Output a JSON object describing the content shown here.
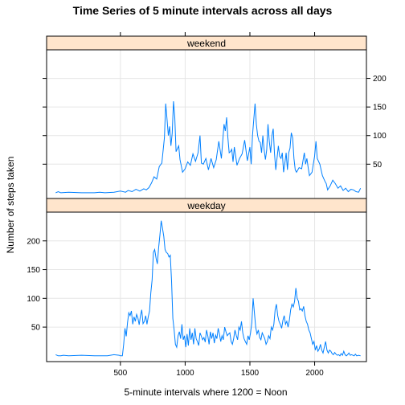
{
  "chart_data": {
    "type": "line",
    "title": "Time Series of 5 minute intervals across all days",
    "xlabel": "5-minute intervals where 1200 = Noon",
    "ylabel": "Number of steps taken",
    "xlim": [
      -70,
      2400
    ],
    "ylim": [
      -10,
      250
    ],
    "x_ticks": [
      500,
      1000,
      1500,
      2000
    ],
    "y_ticks": [
      50,
      100,
      150,
      200
    ],
    "grid": true,
    "line_color": "#0080FF",
    "strip_color": "#FFE5CC",
    "panels": [
      {
        "name": "weekend",
        "y_axis_side": "right",
        "points": [
          [
            0,
            0
          ],
          [
            20,
            2
          ],
          [
            40,
            0
          ],
          [
            100,
            1
          ],
          [
            200,
            0
          ],
          [
            300,
            0
          ],
          [
            340,
            1
          ],
          [
            380,
            0
          ],
          [
            450,
            1
          ],
          [
            500,
            3
          ],
          [
            540,
            1
          ],
          [
            560,
            4
          ],
          [
            590,
            2
          ],
          [
            620,
            6
          ],
          [
            650,
            3
          ],
          [
            680,
            7
          ],
          [
            700,
            5
          ],
          [
            720,
            9
          ],
          [
            740,
            17
          ],
          [
            760,
            28
          ],
          [
            780,
            24
          ],
          [
            800,
            46
          ],
          [
            820,
            52
          ],
          [
            840,
            96
          ],
          [
            850,
            156
          ],
          [
            860,
            128
          ],
          [
            870,
            100
          ],
          [
            880,
            116
          ],
          [
            890,
            82
          ],
          [
            900,
            104
          ],
          [
            910,
            160
          ],
          [
            920,
            132
          ],
          [
            930,
            72
          ],
          [
            950,
            82
          ],
          [
            960,
            58
          ],
          [
            980,
            36
          ],
          [
            1000,
            42
          ],
          [
            1020,
            54
          ],
          [
            1040,
            48
          ],
          [
            1060,
            68
          ],
          [
            1080,
            55
          ],
          [
            1100,
            70
          ],
          [
            1115,
            100
          ],
          [
            1125,
            52
          ],
          [
            1140,
            50
          ],
          [
            1160,
            60
          ],
          [
            1180,
            40
          ],
          [
            1200,
            60
          ],
          [
            1220,
            44
          ],
          [
            1240,
            58
          ],
          [
            1260,
            90
          ],
          [
            1280,
            60
          ],
          [
            1300,
            120
          ],
          [
            1310,
            108
          ],
          [
            1320,
            132
          ],
          [
            1330,
            96
          ],
          [
            1340,
            70
          ],
          [
            1350,
            72
          ],
          [
            1360,
            76
          ],
          [
            1370,
            54
          ],
          [
            1380,
            80
          ],
          [
            1390,
            64
          ],
          [
            1400,
            48
          ],
          [
            1420,
            60
          ],
          [
            1440,
            68
          ],
          [
            1460,
            92
          ],
          [
            1480,
            56
          ],
          [
            1500,
            80
          ],
          [
            1510,
            50
          ],
          [
            1520,
            100
          ],
          [
            1530,
            128
          ],
          [
            1540,
            156
          ],
          [
            1550,
            120
          ],
          [
            1560,
            100
          ],
          [
            1570,
            90
          ],
          [
            1580,
            88
          ],
          [
            1590,
            70
          ],
          [
            1600,
            100
          ],
          [
            1610,
            75
          ],
          [
            1620,
            58
          ],
          [
            1630,
            75
          ],
          [
            1640,
            120
          ],
          [
            1650,
            90
          ],
          [
            1660,
            70
          ],
          [
            1670,
            100
          ],
          [
            1680,
            112
          ],
          [
            1690,
            68
          ],
          [
            1700,
            40
          ],
          [
            1720,
            82
          ],
          [
            1730,
            64
          ],
          [
            1740,
            60
          ],
          [
            1750,
            70
          ],
          [
            1760,
            36
          ],
          [
            1770,
            52
          ],
          [
            1780,
            70
          ],
          [
            1790,
            40
          ],
          [
            1800,
            70
          ],
          [
            1810,
            78
          ],
          [
            1820,
            105
          ],
          [
            1830,
            96
          ],
          [
            1840,
            60
          ],
          [
            1850,
            40
          ],
          [
            1860,
            36
          ],
          [
            1880,
            44
          ],
          [
            1900,
            42
          ],
          [
            1920,
            70
          ],
          [
            1930,
            50
          ],
          [
            1940,
            60
          ],
          [
            1950,
            44
          ],
          [
            1960,
            30
          ],
          [
            1980,
            36
          ],
          [
            2000,
            64
          ],
          [
            2010,
            90
          ],
          [
            2020,
            60
          ],
          [
            2040,
            50
          ],
          [
            2060,
            30
          ],
          [
            2080,
            20
          ],
          [
            2090,
            16
          ],
          [
            2100,
            5
          ],
          [
            2120,
            12
          ],
          [
            2140,
            22
          ],
          [
            2160,
            16
          ],
          [
            2180,
            8
          ],
          [
            2200,
            12
          ],
          [
            2220,
            4
          ],
          [
            2240,
            8
          ],
          [
            2260,
            2
          ],
          [
            2280,
            6
          ],
          [
            2300,
            5
          ],
          [
            2320,
            2
          ],
          [
            2340,
            1
          ],
          [
            2355,
            8
          ]
        ]
      },
      {
        "name": "weekday",
        "y_axis_side": "left",
        "points": [
          [
            0,
            2
          ],
          [
            20,
            0
          ],
          [
            40,
            0
          ],
          [
            60,
            1
          ],
          [
            100,
            0
          ],
          [
            200,
            1
          ],
          [
            300,
            0
          ],
          [
            400,
            0
          ],
          [
            450,
            2
          ],
          [
            490,
            1
          ],
          [
            500,
            0
          ],
          [
            515,
            0
          ],
          [
            525,
            20
          ],
          [
            535,
            48
          ],
          [
            545,
            34
          ],
          [
            555,
            58
          ],
          [
            565,
            75
          ],
          [
            575,
            70
          ],
          [
            585,
            78
          ],
          [
            595,
            55
          ],
          [
            605,
            68
          ],
          [
            615,
            60
          ],
          [
            625,
            72
          ],
          [
            635,
            66
          ],
          [
            645,
            54
          ],
          [
            655,
            70
          ],
          [
            665,
            80
          ],
          [
            675,
            56
          ],
          [
            685,
            60
          ],
          [
            695,
            70
          ],
          [
            705,
            55
          ],
          [
            715,
            68
          ],
          [
            725,
            78
          ],
          [
            735,
            110
          ],
          [
            745,
            132
          ],
          [
            755,
            180
          ],
          [
            765,
            185
          ],
          [
            775,
            170
          ],
          [
            785,
            160
          ],
          [
            795,
            188
          ],
          [
            805,
            210
          ],
          [
            815,
            235
          ],
          [
            825,
            222
          ],
          [
            835,
            208
          ],
          [
            845,
            185
          ],
          [
            855,
            180
          ],
          [
            865,
            178
          ],
          [
            875,
            172
          ],
          [
            885,
            175
          ],
          [
            895,
            130
          ],
          [
            905,
            65
          ],
          [
            915,
            45
          ],
          [
            925,
            20
          ],
          [
            935,
            15
          ],
          [
            945,
            35
          ],
          [
            955,
            42
          ],
          [
            965,
            30
          ],
          [
            975,
            55
          ],
          [
            985,
            28
          ],
          [
            995,
            35
          ],
          [
            1005,
            15
          ],
          [
            1015,
            38
          ],
          [
            1025,
            18
          ],
          [
            1035,
            48
          ],
          [
            1045,
            28
          ],
          [
            1055,
            40
          ],
          [
            1065,
            20
          ],
          [
            1075,
            48
          ],
          [
            1085,
            30
          ],
          [
            1095,
            25
          ],
          [
            1105,
            18
          ],
          [
            1115,
            40
          ],
          [
            1125,
            34
          ],
          [
            1135,
            28
          ],
          [
            1145,
            32
          ],
          [
            1155,
            24
          ],
          [
            1165,
            45
          ],
          [
            1175,
            35
          ],
          [
            1185,
            20
          ],
          [
            1195,
            42
          ],
          [
            1205,
            30
          ],
          [
            1215,
            40
          ],
          [
            1225,
            22
          ],
          [
            1235,
            36
          ],
          [
            1245,
            30
          ],
          [
            1255,
            48
          ],
          [
            1265,
            38
          ],
          [
            1275,
            25
          ],
          [
            1285,
            35
          ],
          [
            1295,
            28
          ],
          [
            1305,
            50
          ],
          [
            1315,
            42
          ],
          [
            1325,
            35
          ],
          [
            1335,
            38
          ],
          [
            1345,
            40
          ],
          [
            1355,
            25
          ],
          [
            1365,
            20
          ],
          [
            1375,
            30
          ],
          [
            1385,
            45
          ],
          [
            1395,
            35
          ],
          [
            1405,
            28
          ],
          [
            1415,
            50
          ],
          [
            1425,
            45
          ],
          [
            1435,
            60
          ],
          [
            1445,
            40
          ],
          [
            1455,
            30
          ],
          [
            1465,
            25
          ],
          [
            1475,
            20
          ],
          [
            1485,
            35
          ],
          [
            1495,
            28
          ],
          [
            1505,
            40
          ],
          [
            1515,
            58
          ],
          [
            1525,
            100
          ],
          [
            1535,
            75
          ],
          [
            1545,
            50
          ],
          [
            1555,
            38
          ],
          [
            1565,
            45
          ],
          [
            1575,
            32
          ],
          [
            1585,
            28
          ],
          [
            1595,
            40
          ],
          [
            1605,
            35
          ],
          [
            1615,
            30
          ],
          [
            1625,
            20
          ],
          [
            1635,
            25
          ],
          [
            1645,
            35
          ],
          [
            1655,
            30
          ],
          [
            1665,
            50
          ],
          [
            1675,
            45
          ],
          [
            1685,
            55
          ],
          [
            1695,
            80
          ],
          [
            1705,
            90
          ],
          [
            1715,
            70
          ],
          [
            1725,
            60
          ],
          [
            1735,
            55
          ],
          [
            1745,
            48
          ],
          [
            1755,
            62
          ],
          [
            1765,
            70
          ],
          [
            1775,
            55
          ],
          [
            1785,
            60
          ],
          [
            1795,
            50
          ],
          [
            1805,
            62
          ],
          [
            1815,
            80
          ],
          [
            1825,
            90
          ],
          [
            1835,
            85
          ],
          [
            1845,
            95
          ],
          [
            1855,
            118
          ],
          [
            1865,
            100
          ],
          [
            1875,
            95
          ],
          [
            1885,
            80
          ],
          [
            1895,
            82
          ],
          [
            1905,
            78
          ],
          [
            1915,
            86
          ],
          [
            1925,
            70
          ],
          [
            1935,
            60
          ],
          [
            1945,
            55
          ],
          [
            1955,
            45
          ],
          [
            1965,
            40
          ],
          [
            1975,
            30
          ],
          [
            1985,
            20
          ],
          [
            1995,
            25
          ],
          [
            2005,
            10
          ],
          [
            2015,
            18
          ],
          [
            2025,
            8
          ],
          [
            2035,
            12
          ],
          [
            2045,
            20
          ],
          [
            2055,
            10
          ],
          [
            2065,
            5
          ],
          [
            2075,
            15
          ],
          [
            2085,
            25
          ],
          [
            2095,
            10
          ],
          [
            2105,
            5
          ],
          [
            2115,
            10
          ],
          [
            2125,
            8
          ],
          [
            2135,
            4
          ],
          [
            2145,
            2
          ],
          [
            2155,
            6
          ],
          [
            2165,
            3
          ],
          [
            2175,
            1
          ],
          [
            2185,
            2
          ],
          [
            2195,
            0
          ],
          [
            2205,
            4
          ],
          [
            2215,
            1
          ],
          [
            2225,
            8
          ],
          [
            2235,
            2
          ],
          [
            2245,
            0
          ],
          [
            2255,
            2
          ],
          [
            2265,
            5
          ],
          [
            2275,
            1
          ],
          [
            2285,
            2
          ],
          [
            2295,
            1
          ],
          [
            2305,
            0
          ],
          [
            2315,
            3
          ],
          [
            2325,
            0
          ],
          [
            2340,
            1
          ],
          [
            2355,
            0
          ]
        ]
      }
    ]
  }
}
